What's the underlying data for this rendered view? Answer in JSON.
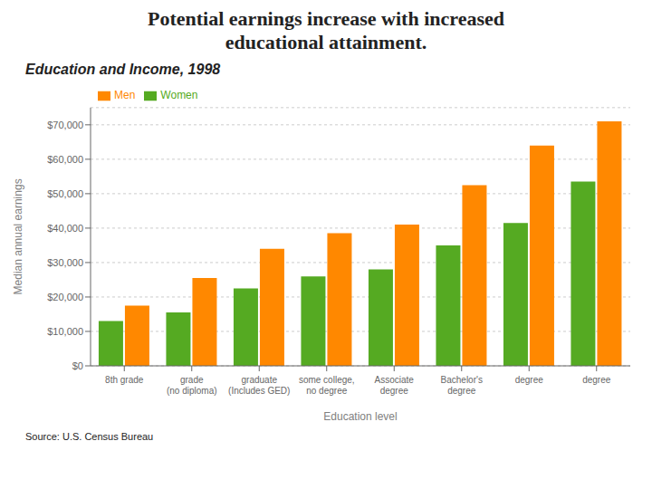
{
  "chart_data": {
    "type": "bar",
    "title": "Potential earnings increase with increased\neducational attainment.",
    "subtitle": "Education and Income, 1998",
    "xlabel": "Education level",
    "ylabel": "Median annual earnings",
    "annotations": [
      "Source: U.S. Census Bureau"
    ],
    "categories": [
      "8th grade",
      "grade\n(no diploma)",
      "graduate\n(Includes GED)",
      "some college,\nno degree",
      "Associate\ndegree",
      "Bachelor's\ndegree",
      "degree",
      "degree"
    ],
    "series": [
      {
        "name": "Women",
        "color": "#55AA22",
        "values": [
          13000,
          15500,
          22500,
          26000,
          28000,
          35000,
          41500,
          53500
        ]
      },
      {
        "name": "Men",
        "color": "#FF8800",
        "values": [
          17500,
          25500,
          34000,
          38500,
          41000,
          52500,
          64000,
          71000
        ]
      }
    ],
    "ylim": [
      0,
      75000
    ],
    "yticks": [
      {
        "value": 0,
        "label": "$0"
      },
      {
        "value": 10000,
        "label": "$10,000"
      },
      {
        "value": 20000,
        "label": "$20,000"
      },
      {
        "value": 30000,
        "label": "$30,000"
      },
      {
        "value": 40000,
        "label": "$40,000"
      },
      {
        "value": 50000,
        "label": "$50,000"
      },
      {
        "value": 60000,
        "label": "$60,000"
      },
      {
        "value": 70000,
        "label": "$70,000"
      }
    ],
    "grid": true,
    "legend": "upper left"
  }
}
